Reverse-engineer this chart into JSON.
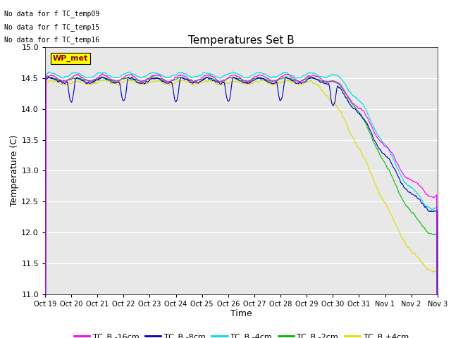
{
  "title": "Temperatures Set B",
  "xlabel": "Time",
  "ylabel": "Temperature (C)",
  "ylim": [
    11.0,
    15.0
  ],
  "yticks": [
    11.0,
    11.5,
    12.0,
    12.5,
    13.0,
    13.5,
    14.0,
    14.5,
    15.0
  ],
  "xtick_labels": [
    "Oct 19",
    "Oct 20",
    "Oct 21",
    "Oct 22",
    "Oct 23",
    "Oct 24",
    "Oct 25",
    "Oct 26",
    "Oct 27",
    "Oct 28",
    "Oct 29",
    "Oct 30",
    "Oct 31",
    "Nov 1",
    "Nov 2",
    "Nov 3"
  ],
  "legend_entries": [
    "TC_B -16cm",
    "TC_B -8cm",
    "TC_B -4cm",
    "TC_B -2cm",
    "TC_B +4cm"
  ],
  "line_colors": [
    "#ff00ff",
    "#0000bb",
    "#00dddd",
    "#00bb00",
    "#dddd00"
  ],
  "annotations": [
    "No data for f TC_temp09",
    "No data for f TC_temp15",
    "No data for f TC_temp16"
  ],
  "watermark": "WP_met",
  "background_color": "#e8e8e8",
  "n_points": 1440,
  "seed": 42
}
